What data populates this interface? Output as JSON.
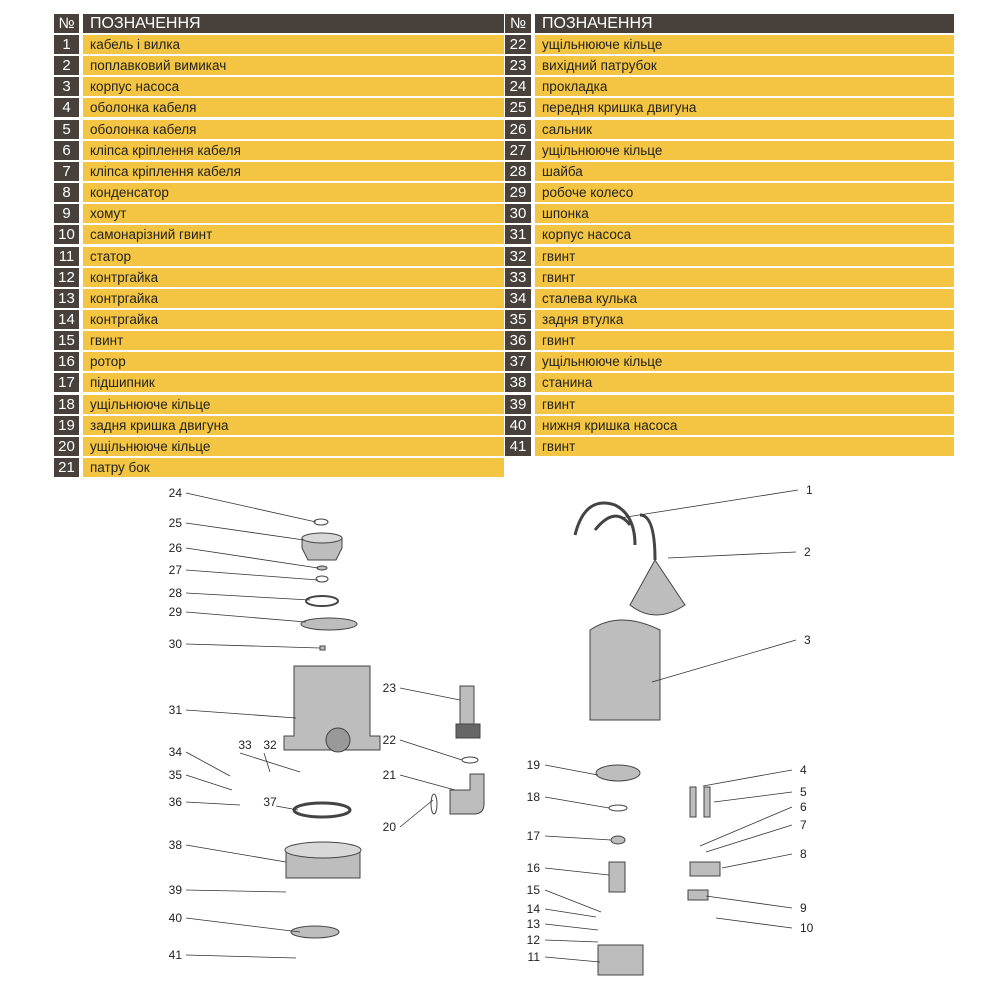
{
  "table": {
    "header_num": "№",
    "header_title": "ПОЗНАЧЕННЯ",
    "left": [
      {
        "n": "1",
        "t": "кабель і вилка"
      },
      {
        "n": "2",
        "t": "поплавковий вимикач"
      },
      {
        "n": "3",
        "t": "корпус насоса"
      },
      {
        "n": "4",
        "t": "оболонка кабеля"
      },
      {
        "n": "5",
        "t": "оболонка кабеля"
      },
      {
        "n": "6",
        "t": "кліпса кріплення кабеля"
      },
      {
        "n": "7",
        "t": "кліпса кріплення кабеля"
      },
      {
        "n": "8",
        "t": "конденсатор"
      },
      {
        "n": "9",
        "t": "хомут"
      },
      {
        "n": "10",
        "t": "самонарізний гвинт"
      },
      {
        "n": "11",
        "t": "статор"
      },
      {
        "n": "12",
        "t": "контргайка"
      },
      {
        "n": "13",
        "t": "контргайка"
      },
      {
        "n": "14",
        "t": "контргайка"
      },
      {
        "n": "15",
        "t": "гвинт"
      },
      {
        "n": "16",
        "t": "ротор"
      },
      {
        "n": "17",
        "t": "підшипник"
      },
      {
        "n": "18",
        "t": "ущільнююче кільце"
      },
      {
        "n": "19",
        "t": "задня кришка двигуна"
      },
      {
        "n": "20",
        "t": "ущільнююче кільце"
      },
      {
        "n": "21",
        "t": "патру бок"
      }
    ],
    "right": [
      {
        "n": "22",
        "t": "ущільнююче кільце"
      },
      {
        "n": "23",
        "t": "вихідний патрубок"
      },
      {
        "n": "24",
        "t": "прокладка"
      },
      {
        "n": "25",
        "t": "передня кришка двигуна"
      },
      {
        "n": "26",
        "t": "сальник"
      },
      {
        "n": "27",
        "t": "ущільнююче кільце"
      },
      {
        "n": "28",
        "t": "шайба"
      },
      {
        "n": "29",
        "t": "робоче колесо"
      },
      {
        "n": "30",
        "t": "шпонка"
      },
      {
        "n": "31",
        "t": "корпус насоса"
      },
      {
        "n": "32",
        "t": "гвинт"
      },
      {
        "n": "33",
        "t": "гвинт"
      },
      {
        "n": "34",
        "t": "сталева кулька"
      },
      {
        "n": "35",
        "t": "задня втулка"
      },
      {
        "n": "36",
        "t": "гвинт"
      },
      {
        "n": "37",
        "t": "ущільнююче кільце"
      },
      {
        "n": "38",
        "t": "станина"
      },
      {
        "n": "39",
        "t": "гвинт"
      },
      {
        "n": "40",
        "t": "нижня кришка насоса"
      },
      {
        "n": "41",
        "t": "гвинт"
      }
    ]
  },
  "colors": {
    "dark": "#47403b",
    "yellow": "#f4c542"
  },
  "diagram": {
    "labels": [
      "1",
      "2",
      "3",
      "4",
      "5",
      "6",
      "7",
      "8",
      "9",
      "10",
      "11",
      "12",
      "13",
      "14",
      "15",
      "16",
      "17",
      "18",
      "19",
      "20",
      "21",
      "22",
      "23",
      "24",
      "25",
      "26",
      "27",
      "28",
      "29",
      "30",
      "31",
      "32",
      "33",
      "34",
      "35",
      "36",
      "37",
      "38",
      "39",
      "40",
      "41"
    ]
  }
}
